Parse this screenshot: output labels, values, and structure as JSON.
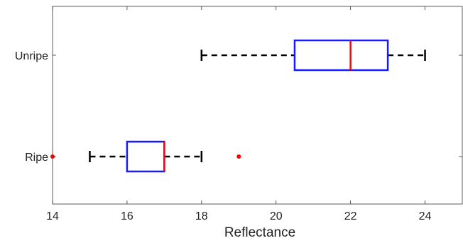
{
  "chart_data": {
    "type": "boxplot",
    "orientation": "horizontal",
    "title": "",
    "xlabel": "Reflectance",
    "ylabel": "",
    "xlim": [
      14,
      25
    ],
    "xticks": [
      14,
      16,
      18,
      20,
      22,
      24
    ],
    "grid": false,
    "categories": [
      "Unripe",
      "Ripe"
    ],
    "boxes": [
      {
        "label": "Unripe",
        "whisker_low": 18,
        "q1": 20.5,
        "median": 22,
        "q3": 23,
        "whisker_high": 24,
        "outliers": []
      },
      {
        "label": "Ripe",
        "whisker_low": 15,
        "q1": 16,
        "median": 17,
        "q3": 17,
        "whisker_high": 18,
        "outliers": [
          14,
          19
        ]
      }
    ],
    "colors": {
      "box": "#1a1aff",
      "median": "#e01010",
      "whisker": "#000000",
      "outlier": "#ff0000",
      "axis": "#333333"
    }
  }
}
